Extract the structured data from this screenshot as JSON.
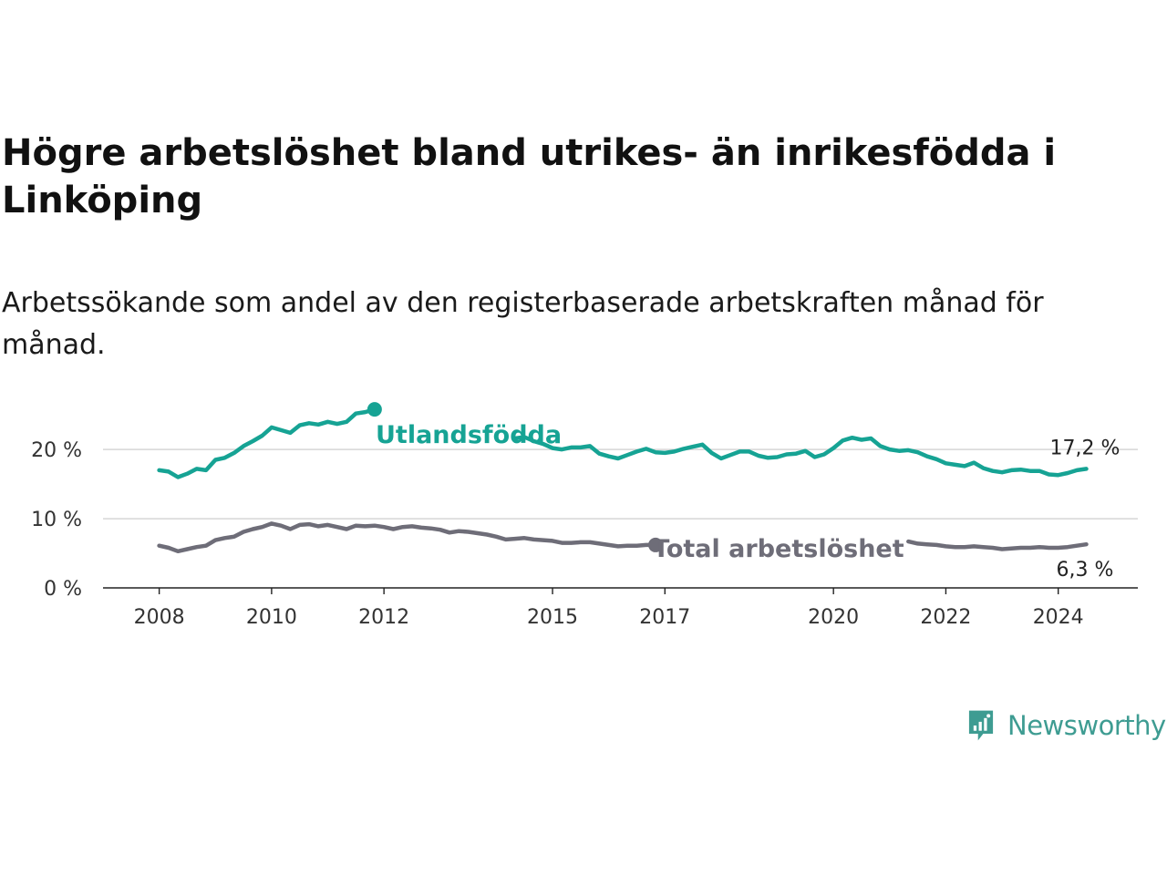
{
  "title": "Högre arbetslöshet bland utrikes- än inrikesfödda i Linköping",
  "subtitle": "Arbetssökande som andel av den registerbaserade arbetskraften månad för månad.",
  "logo": {
    "text": "Newsworthy",
    "color": "#3e9c92",
    "icon": "bar-chart-speech-bubble-icon"
  },
  "chart_data": {
    "type": "line",
    "title": "Högre arbetslöshet bland utrikes- än inrikesfödda i Linköping",
    "subtitle": "Arbetssökande som andel av den registerbaserade arbetskraften månad för månad.",
    "x_ticks": [
      "2008",
      "2010",
      "2012",
      "2015",
      "2017",
      "2020",
      "2022",
      "2024"
    ],
    "y_ticks": [
      "0 %",
      "10 %",
      "20 %"
    ],
    "ylim": [
      0,
      27
    ],
    "xlim": [
      "2007-01",
      "2025-06"
    ],
    "grid": true,
    "series": [
      {
        "name": "Utlandsfödda",
        "color": "#16a394",
        "end_label": "17,2 %",
        "points": [
          [
            "2008-01",
            17.0
          ],
          [
            "2008-03",
            16.8
          ],
          [
            "2008-05",
            16.0
          ],
          [
            "2008-07",
            16.5
          ],
          [
            "2008-09",
            17.2
          ],
          [
            "2008-11",
            17.0
          ],
          [
            "2009-01",
            18.5
          ],
          [
            "2009-03",
            18.8
          ],
          [
            "2009-05",
            19.5
          ],
          [
            "2009-07",
            20.5
          ],
          [
            "2009-09",
            21.2
          ],
          [
            "2009-11",
            22.0
          ],
          [
            "2010-01",
            23.2
          ],
          [
            "2010-03",
            22.8
          ],
          [
            "2010-05",
            22.4
          ],
          [
            "2010-07",
            23.5
          ],
          [
            "2010-09",
            23.8
          ],
          [
            "2010-11",
            23.6
          ],
          [
            "2011-01",
            24.0
          ],
          [
            "2011-03",
            23.7
          ],
          [
            "2011-05",
            24.0
          ],
          [
            "2011-07",
            25.2
          ],
          [
            "2011-09",
            25.4
          ],
          [
            "2011-11",
            25.8
          ]
        ]
      },
      {
        "name": "Utlandsfödda",
        "color": "#16a394",
        "points": [
          [
            "2014-05",
            21.6
          ],
          [
            "2014-07",
            21.8
          ],
          [
            "2014-09",
            21.2
          ],
          [
            "2014-11",
            20.8
          ],
          [
            "2015-01",
            20.2
          ],
          [
            "2015-03",
            20.0
          ],
          [
            "2015-05",
            20.3
          ],
          [
            "2015-07",
            20.3
          ],
          [
            "2015-09",
            20.5
          ],
          [
            "2015-11",
            19.4
          ],
          [
            "2016-01",
            19.0
          ],
          [
            "2016-03",
            18.7
          ],
          [
            "2016-05",
            19.2
          ],
          [
            "2016-07",
            19.7
          ],
          [
            "2016-09",
            20.1
          ],
          [
            "2016-11",
            19.6
          ],
          [
            "2017-01",
            19.5
          ],
          [
            "2017-03",
            19.7
          ],
          [
            "2017-05",
            20.1
          ],
          [
            "2017-07",
            20.4
          ],
          [
            "2017-09",
            20.7
          ],
          [
            "2017-11",
            19.5
          ],
          [
            "2018-01",
            18.7
          ],
          [
            "2018-03",
            19.2
          ],
          [
            "2018-05",
            19.7
          ],
          [
            "2018-07",
            19.7
          ],
          [
            "2018-09",
            19.1
          ],
          [
            "2018-11",
            18.8
          ],
          [
            "2019-01",
            18.9
          ],
          [
            "2019-03",
            19.3
          ],
          [
            "2019-05",
            19.4
          ],
          [
            "2019-07",
            19.8
          ],
          [
            "2019-09",
            18.9
          ],
          [
            "2019-11",
            19.3
          ],
          [
            "2020-01",
            20.2
          ],
          [
            "2020-03",
            21.3
          ],
          [
            "2020-05",
            21.7
          ],
          [
            "2020-07",
            21.4
          ],
          [
            "2020-09",
            21.6
          ],
          [
            "2020-11",
            20.5
          ],
          [
            "2021-01",
            20.0
          ],
          [
            "2021-03",
            19.8
          ],
          [
            "2021-05",
            19.9
          ],
          [
            "2021-07",
            19.6
          ],
          [
            "2021-09",
            19.0
          ],
          [
            "2021-11",
            18.6
          ],
          [
            "2022-01",
            18.0
          ],
          [
            "2022-03",
            17.8
          ],
          [
            "2022-05",
            17.6
          ],
          [
            "2022-07",
            18.1
          ],
          [
            "2022-09",
            17.3
          ],
          [
            "2022-11",
            16.9
          ],
          [
            "2023-01",
            16.7
          ],
          [
            "2023-03",
            17.0
          ],
          [
            "2023-05",
            17.1
          ],
          [
            "2023-07",
            16.9
          ],
          [
            "2023-09",
            16.9
          ],
          [
            "2023-11",
            16.4
          ],
          [
            "2024-01",
            16.3
          ],
          [
            "2024-03",
            16.6
          ],
          [
            "2024-05",
            17.0
          ],
          [
            "2024-07",
            17.2
          ]
        ]
      },
      {
        "name": "Total arbetslöshet",
        "color": "#6e6d78",
        "end_label": "6,3 %",
        "points": [
          [
            "2008-01",
            6.1
          ],
          [
            "2008-03",
            5.8
          ],
          [
            "2008-05",
            5.3
          ],
          [
            "2008-07",
            5.6
          ],
          [
            "2008-09",
            5.9
          ],
          [
            "2008-11",
            6.1
          ],
          [
            "2009-01",
            6.9
          ],
          [
            "2009-03",
            7.2
          ],
          [
            "2009-05",
            7.4
          ],
          [
            "2009-07",
            8.1
          ],
          [
            "2009-09",
            8.5
          ],
          [
            "2009-11",
            8.8
          ],
          [
            "2010-01",
            9.3
          ],
          [
            "2010-03",
            9.0
          ],
          [
            "2010-05",
            8.5
          ],
          [
            "2010-07",
            9.1
          ],
          [
            "2010-09",
            9.2
          ],
          [
            "2010-11",
            8.9
          ],
          [
            "2011-01",
            9.1
          ],
          [
            "2011-03",
            8.8
          ],
          [
            "2011-05",
            8.5
          ],
          [
            "2011-07",
            9.0
          ],
          [
            "2011-09",
            8.9
          ],
          [
            "2011-11",
            9.0
          ],
          [
            "2012-01",
            8.8
          ],
          [
            "2012-03",
            8.5
          ],
          [
            "2012-05",
            8.8
          ],
          [
            "2012-07",
            8.9
          ],
          [
            "2012-09",
            8.7
          ],
          [
            "2012-11",
            8.6
          ],
          [
            "2013-01",
            8.4
          ],
          [
            "2013-03",
            8.0
          ],
          [
            "2013-05",
            8.2
          ],
          [
            "2013-07",
            8.1
          ],
          [
            "2013-09",
            7.9
          ],
          [
            "2013-11",
            7.7
          ],
          [
            "2014-01",
            7.4
          ],
          [
            "2014-03",
            7.0
          ],
          [
            "2014-05",
            7.1
          ],
          [
            "2014-07",
            7.2
          ],
          [
            "2014-09",
            7.0
          ],
          [
            "2014-11",
            6.9
          ],
          [
            "2015-01",
            6.8
          ],
          [
            "2015-03",
            6.5
          ],
          [
            "2015-05",
            6.5
          ],
          [
            "2015-07",
            6.6
          ],
          [
            "2015-09",
            6.6
          ],
          [
            "2015-11",
            6.4
          ],
          [
            "2016-01",
            6.2
          ],
          [
            "2016-03",
            6.0
          ],
          [
            "2016-05",
            6.1
          ],
          [
            "2016-07",
            6.1
          ],
          [
            "2016-09",
            6.2
          ],
          [
            "2016-11",
            6.2
          ]
        ]
      },
      {
        "name": "Total arbetslöshet",
        "color": "#6e6d78",
        "points": [
          [
            "2021-05",
            6.7
          ],
          [
            "2021-07",
            6.4
          ],
          [
            "2021-09",
            6.3
          ],
          [
            "2021-11",
            6.2
          ],
          [
            "2022-01",
            6.0
          ],
          [
            "2022-03",
            5.9
          ],
          [
            "2022-05",
            5.9
          ],
          [
            "2022-07",
            6.0
          ],
          [
            "2022-09",
            5.9
          ],
          [
            "2022-11",
            5.8
          ],
          [
            "2023-01",
            5.6
          ],
          [
            "2023-03",
            5.7
          ],
          [
            "2023-05",
            5.8
          ],
          [
            "2023-07",
            5.8
          ],
          [
            "2023-09",
            5.9
          ],
          [
            "2023-11",
            5.8
          ],
          [
            "2024-01",
            5.8
          ],
          [
            "2024-03",
            5.9
          ],
          [
            "2024-05",
            6.1
          ],
          [
            "2024-07",
            6.3
          ]
        ]
      }
    ]
  }
}
